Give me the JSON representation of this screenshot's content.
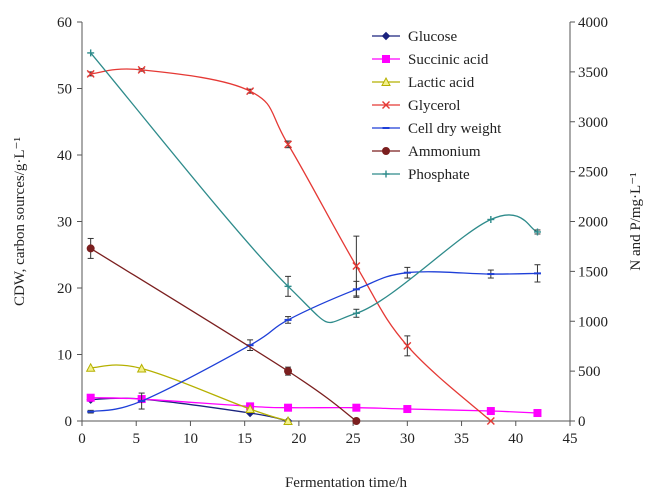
{
  "chart_data": {
    "type": "line",
    "xlabel": "Fermentation time/h",
    "ylabel_left": "CDW, carbon sources/g·L⁻¹",
    "ylabel_right": "N and P/mg·L⁻¹",
    "xlim": [
      0,
      45
    ],
    "ylim_left": [
      0,
      60
    ],
    "ylim_right": [
      0,
      4000
    ],
    "x_ticks": [
      "0",
      "5",
      "10",
      "15",
      "20",
      "25",
      "30",
      "35",
      "40",
      "45"
    ],
    "y_left_ticks": [
      "0",
      "10",
      "20",
      "30",
      "40",
      "50",
      "60"
    ],
    "y_right_ticks": [
      "0",
      "500",
      "1000",
      "1500",
      "2000",
      "2500",
      "3000",
      "3500",
      "4000"
    ],
    "grid": false,
    "legend_position": "top-right",
    "series": [
      {
        "name": "Glucose",
        "axis": "left",
        "color": "#1a237e",
        "marker": "diamond",
        "x": [
          0.8,
          5.5,
          15.5,
          19
        ],
        "y": [
          3.2,
          3.3,
          1.2,
          0
        ],
        "err": [
          0,
          0,
          0,
          0
        ]
      },
      {
        "name": "Succinic acid",
        "axis": "left",
        "color": "#ff00ff",
        "marker": "square",
        "x": [
          0.8,
          5.5,
          15.5,
          19,
          25.3,
          30,
          37.7,
          42
        ],
        "y": [
          3.5,
          3.3,
          2.2,
          2.0,
          2.0,
          1.8,
          1.5,
          1.2
        ],
        "err": [
          0,
          0,
          0,
          0,
          0,
          0,
          0,
          0
        ]
      },
      {
        "name": "Lactic acid",
        "axis": "left",
        "color": "#b5b000",
        "marker": "triangle",
        "x": [
          0.8,
          5.5,
          15.5,
          19
        ],
        "y": [
          8.0,
          7.9,
          1.8,
          0
        ],
        "err": [
          0,
          0,
          0,
          0
        ]
      },
      {
        "name": "Glycerol",
        "axis": "left",
        "color": "#e53935",
        "marker": "x",
        "x": [
          0.8,
          5.5,
          15.5,
          19,
          25.3,
          30,
          37.7
        ],
        "y": [
          52.2,
          52.8,
          49.6,
          41.6,
          23.3,
          11.3,
          0
        ],
        "err": [
          0.3,
          0.2,
          0.3,
          0.5,
          4.5,
          1.5,
          0
        ]
      },
      {
        "name": "Cell dry weight",
        "axis": "left",
        "color": "#1e3fd8",
        "marker": "dash",
        "x": [
          0.8,
          5.5,
          15.5,
          19,
          25.3,
          30,
          37.7,
          42
        ],
        "y": [
          1.4,
          3.0,
          11.4,
          15.2,
          19.8,
          22.3,
          22.1,
          22.2
        ],
        "err": [
          0.2,
          1.2,
          0.8,
          0.5,
          1.2,
          0.8,
          0.6,
          1.3
        ]
      },
      {
        "name": "Ammonium",
        "axis": "right",
        "color": "#7b1f1f",
        "marker": "circle",
        "x": [
          0.8,
          19,
          25.3
        ],
        "y": [
          1730,
          500,
          0
        ],
        "err": [
          100,
          40,
          0
        ]
      },
      {
        "name": "Phosphate",
        "axis": "right",
        "color": "#2e8b8b",
        "marker": "plus",
        "x": [
          0.8,
          19,
          25.3,
          37.7,
          42
        ],
        "y": [
          3690,
          1350,
          1080,
          2020,
          1895
        ],
        "err": [
          0,
          100,
          40,
          0,
          20
        ]
      }
    ]
  }
}
